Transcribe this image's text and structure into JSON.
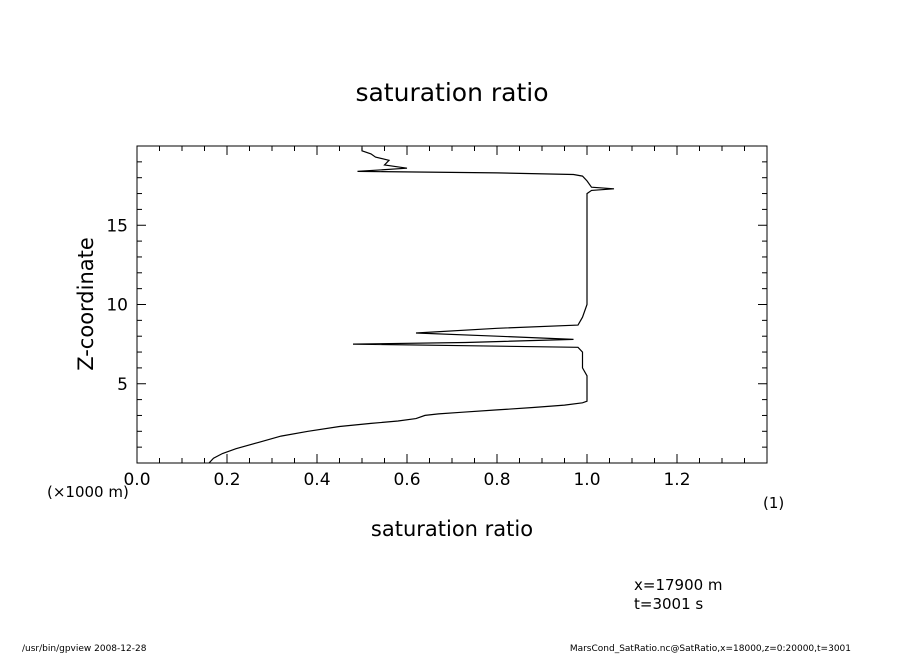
{
  "chart_data": {
    "type": "line",
    "title": "saturation ratio",
    "xlabel": "saturation ratio",
    "ylabel": "Z-coordinate",
    "x_unit_label": "(1)",
    "y_unit_label": "(×1000 m)",
    "xlim": [
      0.0,
      1.4
    ],
    "ylim": [
      0,
      20
    ],
    "x_ticks": [
      "0.0",
      "0.2",
      "0.4",
      "0.6",
      "0.8",
      "1.0",
      "1.2"
    ],
    "y_ticks": [
      "5",
      "10",
      "15"
    ],
    "grid": false,
    "series": [
      {
        "points": [
          [
            0.16,
            0.0
          ],
          [
            0.17,
            0.3
          ],
          [
            0.19,
            0.6
          ],
          [
            0.22,
            0.9
          ],
          [
            0.27,
            1.3
          ],
          [
            0.32,
            1.7
          ],
          [
            0.38,
            2.0
          ],
          [
            0.45,
            2.3
          ],
          [
            0.52,
            2.5
          ],
          [
            0.58,
            2.65
          ],
          [
            0.62,
            2.8
          ],
          [
            0.64,
            3.0
          ],
          [
            0.67,
            3.1
          ],
          [
            0.72,
            3.2
          ],
          [
            0.8,
            3.35
          ],
          [
            0.88,
            3.5
          ],
          [
            0.95,
            3.65
          ],
          [
            0.99,
            3.8
          ],
          [
            1.0,
            3.9
          ],
          [
            1.0,
            4.5
          ],
          [
            1.0,
            5.0
          ],
          [
            1.0,
            5.5
          ],
          [
            0.99,
            6.0
          ],
          [
            0.99,
            6.5
          ],
          [
            0.99,
            7.0
          ],
          [
            0.98,
            7.3
          ],
          [
            0.73,
            7.4
          ],
          [
            0.48,
            7.5
          ],
          [
            0.73,
            7.6
          ],
          [
            0.97,
            7.8
          ],
          [
            0.8,
            8.0
          ],
          [
            0.62,
            8.2
          ],
          [
            0.8,
            8.5
          ],
          [
            0.98,
            8.7
          ],
          [
            0.99,
            9.2
          ],
          [
            1.0,
            10.0
          ],
          [
            1.0,
            10.5
          ],
          [
            1.0,
            11.0
          ],
          [
            1.0,
            12.0
          ],
          [
            1.0,
            13.0
          ],
          [
            1.0,
            14.0
          ],
          [
            1.0,
            15.0
          ],
          [
            1.0,
            16.0
          ],
          [
            1.0,
            17.0
          ],
          [
            1.01,
            17.2
          ],
          [
            1.06,
            17.3
          ],
          [
            1.01,
            17.4
          ],
          [
            1.0,
            17.8
          ],
          [
            0.99,
            18.1
          ],
          [
            0.97,
            18.2
          ],
          [
            0.8,
            18.3
          ],
          [
            0.49,
            18.4
          ],
          [
            0.6,
            18.6
          ],
          [
            0.55,
            18.8
          ],
          [
            0.56,
            19.1
          ],
          [
            0.53,
            19.3
          ],
          [
            0.52,
            19.5
          ],
          [
            0.5,
            19.7
          ],
          [
            0.5,
            19.9
          ]
        ]
      }
    ]
  },
  "annotations": {
    "info_line1": "x=17900 m",
    "info_line2": "t=3001 s",
    "footer_left": "/usr/bin/gpview  2008-12-28",
    "footer_right": "MarsCond_SatRatio.nc@SatRatio,x=18000,z=0:20000,t=3001"
  }
}
